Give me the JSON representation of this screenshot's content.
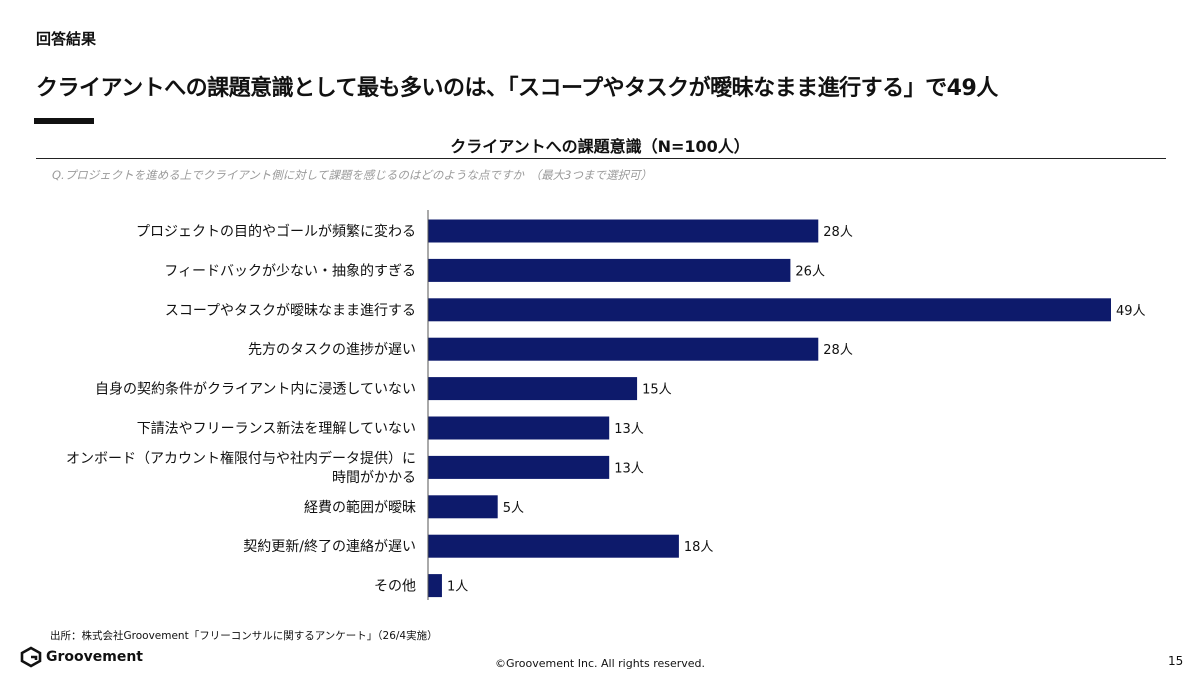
{
  "header": {
    "section_label": "回答結果",
    "headline": "クライアントへの課題意識として最も多いのは、「スコープやタスクが曖昧なまま進行する」で49人"
  },
  "chart_title": "クライアントへの課題意識（N=100人）",
  "question": "Q.プロジェクトを進める上でクライアント側に対して課題を感じるのはどのような点ですか　（最大3つまで選択可）",
  "chart_data": {
    "type": "bar",
    "orientation": "horizontal",
    "bar_color": "#0d1a6b",
    "value_suffix": "人",
    "categories": [
      [
        "プロジェクトの目的やゴールが頻繁に変わる"
      ],
      [
        "フィードバックが少ない・抽象的すぎる"
      ],
      [
        "スコープやタスクが曖昧なまま進行する"
      ],
      [
        "先方のタスクの進捗が遅い"
      ],
      [
        "自身の契約条件がクライアント内に浸透していない"
      ],
      [
        "下請法やフリーランス新法を理解していない"
      ],
      [
        "オンボード（アカウント権限付与や社内データ提供）に",
        "時間がかかる"
      ],
      [
        "経費の範囲が曖昧"
      ],
      [
        "契約更新/終了の連絡が遅い"
      ],
      [
        "その他"
      ]
    ],
    "values": [
      28,
      26,
      49,
      28,
      15,
      13,
      13,
      5,
      18,
      1
    ],
    "xlim": [
      0,
      49
    ]
  },
  "footer": {
    "source": "出所：株式会社Groovement「フリーコンサルに関するアンケート」（26/4実施）",
    "logo_text": "Groovement",
    "copyright": "©Groovement Inc. All rights reserved.",
    "page_number": "15"
  }
}
